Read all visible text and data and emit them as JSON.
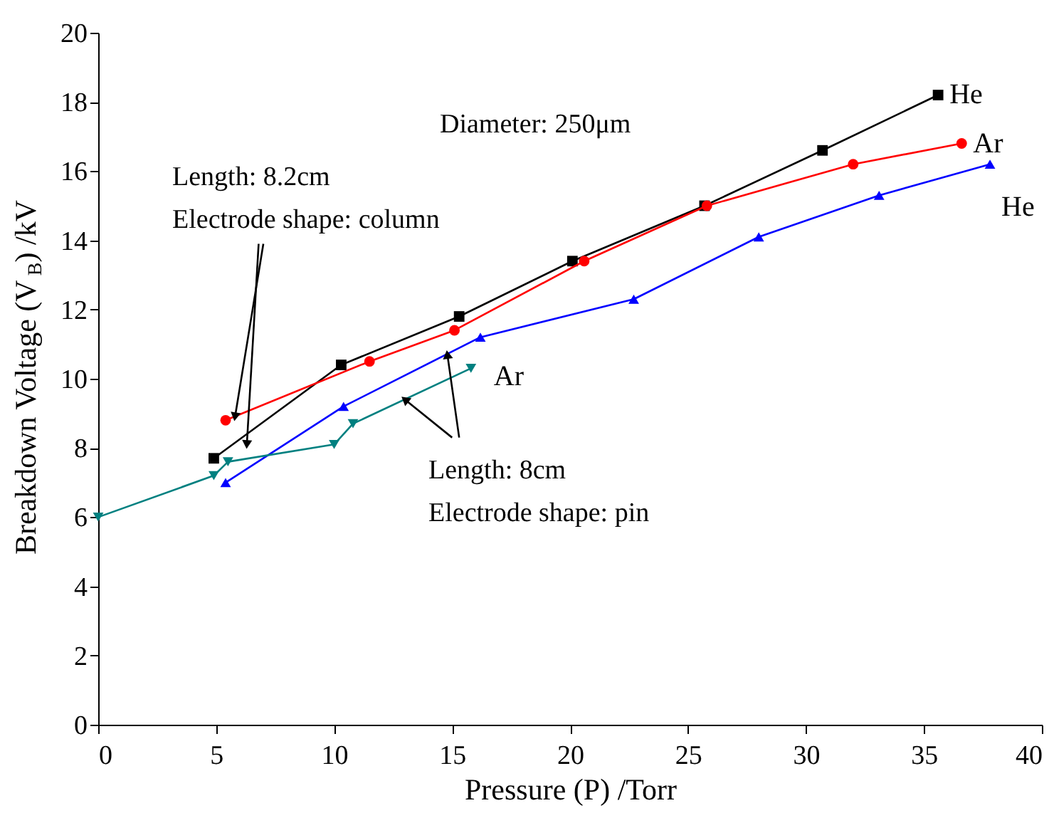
{
  "chart_data": {
    "type": "line",
    "xlabel": "Pressure (P) /Torr",
    "ylabel": "Breakdown Voltage (V$_{B}$) /kV",
    "xlim": [
      0,
      40
    ],
    "xticks": [
      0,
      5,
      10,
      15,
      20,
      25,
      30,
      35,
      40
    ],
    "ylim": [
      0,
      20
    ],
    "yticks": [
      0,
      2,
      4,
      6,
      8,
      10,
      12,
      14,
      16,
      18,
      20
    ],
    "grid": false,
    "legend": false,
    "series": [
      {
        "name": "He",
        "color": "#000000",
        "marker": "square",
        "x": [
          4.9,
          10.3,
          15.3,
          20.1,
          25.7,
          30.7,
          35.6
        ],
        "values": [
          7.7,
          10.4,
          11.8,
          13.4,
          15.0,
          16.6,
          18.2
        ]
      },
      {
        "name": "Ar",
        "color": "#ff0000",
        "marker": "circle",
        "x": [
          5.4,
          11.5,
          15.1,
          20.6,
          25.8,
          32.0,
          36.6
        ],
        "values": [
          8.8,
          10.5,
          11.4,
          13.4,
          15.0,
          16.2,
          16.8
        ]
      },
      {
        "name": "He",
        "color": "#0000ff",
        "marker": "triangle",
        "x": [
          5.4,
          10.4,
          16.2,
          22.7,
          28.0,
          33.1,
          37.8
        ],
        "values": [
          7.0,
          9.2,
          11.2,
          12.3,
          14.1,
          15.3,
          16.2
        ]
      },
      {
        "name": "Ar",
        "color": "#008080",
        "marker": "triangle",
        "x": [
          0,
          4.9,
          5.5,
          10.0,
          10.8,
          15.8
        ],
        "values": [
          6.0,
          7.2,
          7.6,
          8.1,
          8.7,
          10.3
        ]
      }
    ],
    "annotations": [
      "Diameter: 250μm",
      {
        "text": "Length: 8.2cm\nElectrode shape: column",
        "x": 5.8,
        "y": 8.9
      },
      {
        "text": "Length: 8cm\nElectrode shape: pin",
        "x": 14.8,
        "y": 10.7
      }
    ]
  }
}
